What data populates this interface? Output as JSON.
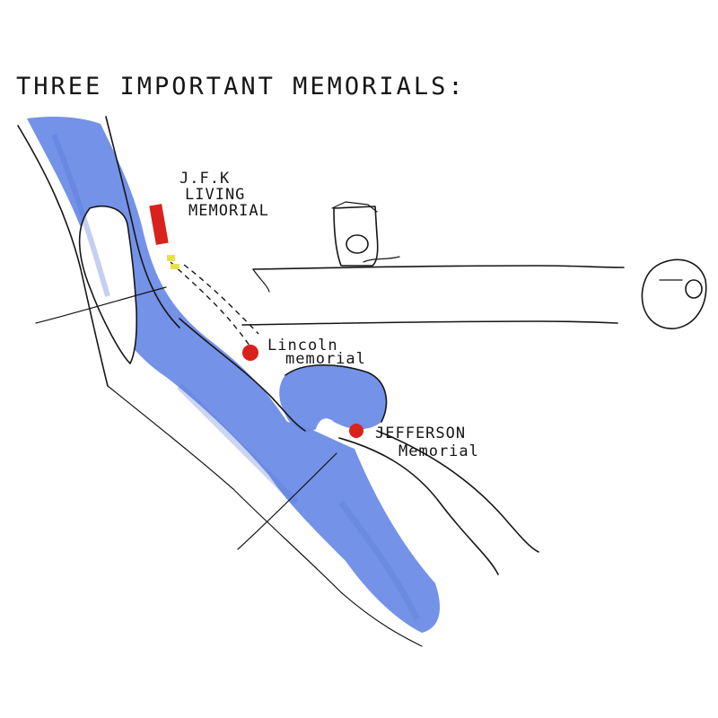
{
  "title": "THREE IMPORTANT MEMORIALS:",
  "colors": {
    "water": "#6d8ce6",
    "water_dark": "#5676d8",
    "marker": "#d8221b",
    "marker_yellow": "#e6e04a",
    "ink": "#161616",
    "paper": "#ffffff"
  },
  "landmarks": [
    {
      "id": "jfk",
      "label_lines": [
        "J.F.K",
        "LIVING",
        "MEMORIAL"
      ],
      "marker": "red-rectangle"
    },
    {
      "id": "lincoln",
      "label_lines": [
        "Lincoln",
        "memorial"
      ],
      "marker": "red-dot"
    },
    {
      "id": "jefferson",
      "label_lines": [
        "JEFFERSON",
        "Memorial"
      ],
      "marker": "red-dot"
    }
  ]
}
